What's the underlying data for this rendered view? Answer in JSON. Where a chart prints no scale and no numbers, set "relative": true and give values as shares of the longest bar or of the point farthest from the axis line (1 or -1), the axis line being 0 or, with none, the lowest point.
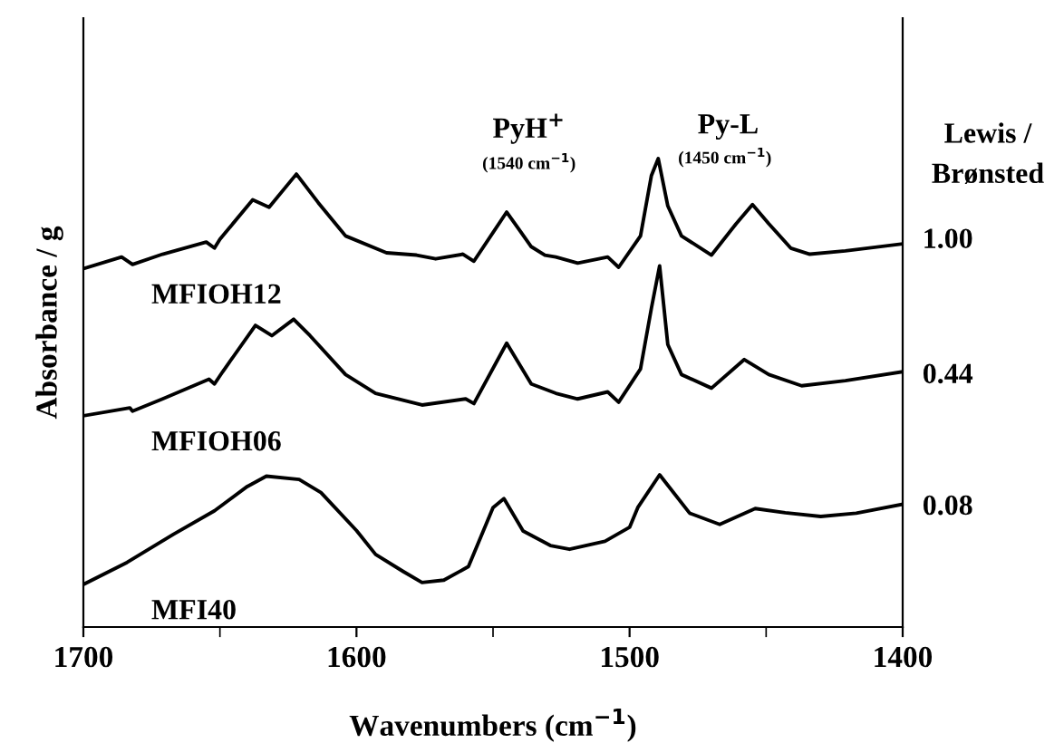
{
  "chart_data": {
    "type": "line",
    "relative": true,
    "xlabel": "Wavenumbers (cm$^{−1}$)",
    "ylabel": "Absorbance / g",
    "xlim": [
      1700,
      1400
    ],
    "xticks": [
      1700,
      {
        "value": 1650,
        "label": null
      },
      1600,
      {
        "value": 1550,
        "label": null
      },
      1500,
      {
        "value": 1450,
        "label": null
      },
      1400
    ],
    "tick_labels": "x",
    "series": [
      {
        "name": "MFIOH12",
        "color": "#000000",
        "x": [
          1700,
          1686,
          1682,
          1671,
          1655,
          1652,
          1650,
          1638,
          1632,
          1622,
          1614,
          1604,
          1589,
          1578,
          1571,
          1561,
          1557,
          1545,
          1536,
          1531,
          1527,
          1519,
          1508,
          1504,
          1496,
          1492,
          1489.5,
          1486,
          1481,
          1470,
          1461,
          1455,
          1449,
          1441,
          1434,
          1421,
          1400
        ],
        "values": [
          0.765,
          0.79,
          0.774,
          0.796,
          0.822,
          0.809,
          0.828,
          0.912,
          0.896,
          0.967,
          0.906,
          0.835,
          0.799,
          0.794,
          0.786,
          0.796,
          0.781,
          0.886,
          0.812,
          0.794,
          0.79,
          0.777,
          0.79,
          0.768,
          0.835,
          0.964,
          1.0,
          0.899,
          0.835,
          0.794,
          0.861,
          0.902,
          0.861,
          0.809,
          0.796,
          0.803,
          0.818
        ]
      },
      {
        "name": "MFIOH06",
        "color": "#000000",
        "x": [
          1700,
          1683,
          1682,
          1671,
          1654,
          1652,
          1649,
          1637,
          1631,
          1623,
          1617,
          1604,
          1593,
          1576,
          1560,
          1557,
          1545,
          1536,
          1527,
          1519,
          1508,
          1504,
          1496,
          1492,
          1489,
          1486,
          1481,
          1470,
          1458,
          1449,
          1437,
          1421,
          1400
        ],
        "values": [
          0.451,
          0.468,
          0.461,
          0.487,
          0.529,
          0.519,
          0.545,
          0.644,
          0.622,
          0.657,
          0.622,
          0.539,
          0.499,
          0.474,
          0.487,
          0.477,
          0.606,
          0.519,
          0.499,
          0.487,
          0.502,
          0.48,
          0.551,
          0.681,
          0.771,
          0.603,
          0.539,
          0.51,
          0.571,
          0.539,
          0.515,
          0.526,
          0.545
        ]
      },
      {
        "name": "MFI40",
        "color": "#000000",
        "x": [
          1700,
          1684,
          1667,
          1652,
          1640,
          1633,
          1621,
          1613,
          1600,
          1593,
          1583,
          1576,
          1568,
          1559,
          1550,
          1546,
          1539,
          1529,
          1522,
          1509,
          1500,
          1497,
          1489,
          1478,
          1467,
          1454,
          1443,
          1430,
          1417,
          1400
        ],
        "values": [
          0.091,
          0.138,
          0.198,
          0.248,
          0.3,
          0.322,
          0.315,
          0.287,
          0.206,
          0.155,
          0.119,
          0.095,
          0.1,
          0.129,
          0.255,
          0.274,
          0.205,
          0.174,
          0.166,
          0.183,
          0.213,
          0.255,
          0.325,
          0.243,
          0.219,
          0.253,
          0.244,
          0.236,
          0.243,
          0.262
        ]
      }
    ],
    "annotations": [
      "PyH$^{+}$",
      "(1540 cm$^{−1}$)",
      "Py-L",
      "(1450 cm$^{−1}$)",
      "Lewis /",
      "Brønsted",
      "1.00",
      "0.44",
      "0.08"
    ],
    "grid": false,
    "marker": "none",
    "line_style": "solid"
  }
}
